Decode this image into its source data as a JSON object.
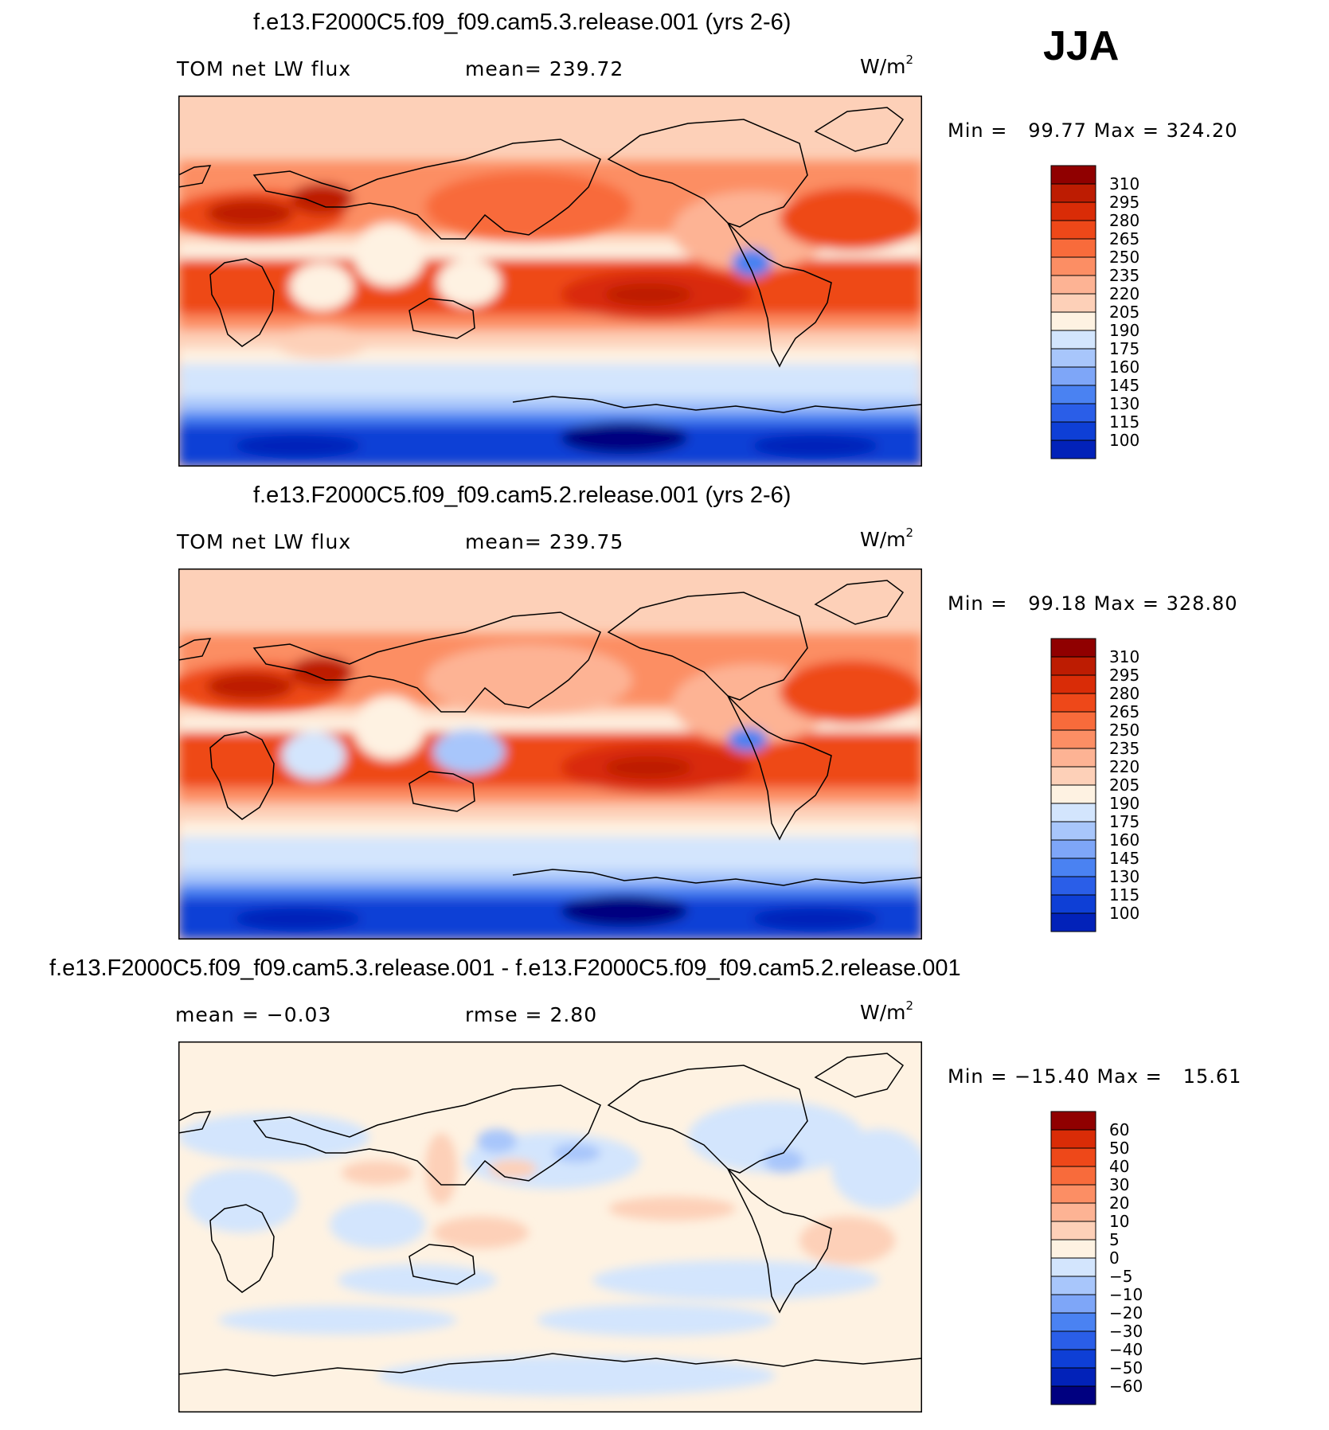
{
  "season": "JJA",
  "units": "W/m",
  "units_exp": "2",
  "colors": {
    "abs_scale": [
      "#000080",
      "#0222b9",
      "#0e3fd6",
      "#2a5ee8",
      "#4a82f2",
      "#7ea6f8",
      "#a8c6fb",
      "#d3e5fd",
      "#fef2e2",
      "#fdd0b8",
      "#fdb394",
      "#fc8e64",
      "#f86b3b",
      "#ee4819",
      "#d92c07",
      "#bd1c02",
      "#900000"
    ],
    "diff_scale": [
      "#000080",
      "#0222b9",
      "#0e3fd6",
      "#2a5ee8",
      "#4a82f2",
      "#7ea6f8",
      "#a8c6fb",
      "#d3e5fd",
      "#fef2e2",
      "#fdd0b8",
      "#fdb394",
      "#fc8e64",
      "#f86b3b",
      "#ee4819",
      "#d92c07",
      "#900000"
    ],
    "coast": "#000000"
  },
  "chart_data": [
    {
      "type": "heatmap",
      "title": "f.e13.F2000C5.f09_f09.cam5.3.release.001 (yrs 2-6)",
      "variable": "TOM net LW flux",
      "stat1_label": "mean=",
      "stat1_value": "239.72",
      "min_label": "Min =",
      "min_value": "99.77",
      "max_label": "Max =",
      "max_value": "324.20",
      "levels": [
        310,
        295,
        280,
        265,
        250,
        235,
        220,
        205,
        190,
        175,
        160,
        145,
        130,
        115,
        100
      ],
      "level_labels": [
        "310",
        "295",
        "280",
        "265",
        "250",
        "235",
        "220",
        "205",
        "190",
        "175",
        "160",
        "145",
        "130",
        "115",
        "100"
      ]
    },
    {
      "type": "heatmap",
      "title": "f.e13.F2000C5.f09_f09.cam5.2.release.001 (yrs 2-6)",
      "variable": "TOM net LW flux",
      "stat1_label": "mean=",
      "stat1_value": "239.75",
      "min_label": "Min =",
      "min_value": "99.18",
      "max_label": "Max =",
      "max_value": "328.80",
      "levels": [
        310,
        295,
        280,
        265,
        250,
        235,
        220,
        205,
        190,
        175,
        160,
        145,
        130,
        115,
        100
      ],
      "level_labels": [
        "310",
        "295",
        "280",
        "265",
        "250",
        "235",
        "220",
        "205",
        "190",
        "175",
        "160",
        "145",
        "130",
        "115",
        "100"
      ]
    },
    {
      "type": "heatmap",
      "title": "f.e13.F2000C5.f09_f09.cam5.3.release.001 - f.e13.F2000C5.f09_f09.cam5.2.release.001",
      "stat1_label": "mean =",
      "stat1_value": "−0.03",
      "stat2_label": "rmse =",
      "stat2_value": "2.80",
      "min_label": "Min =",
      "min_value": "−15.40",
      "max_label": "Max =",
      "max_value": "15.61",
      "levels": [
        60,
        50,
        40,
        30,
        20,
        10,
        5,
        0,
        -5,
        -10,
        -20,
        -30,
        -40,
        -50,
        -60
      ],
      "level_labels": [
        "60",
        "50",
        "40",
        "30",
        "20",
        "10",
        "5",
        "0",
        "−5",
        "−10",
        "−20",
        "−30",
        "−40",
        "−50",
        "−60"
      ]
    }
  ]
}
